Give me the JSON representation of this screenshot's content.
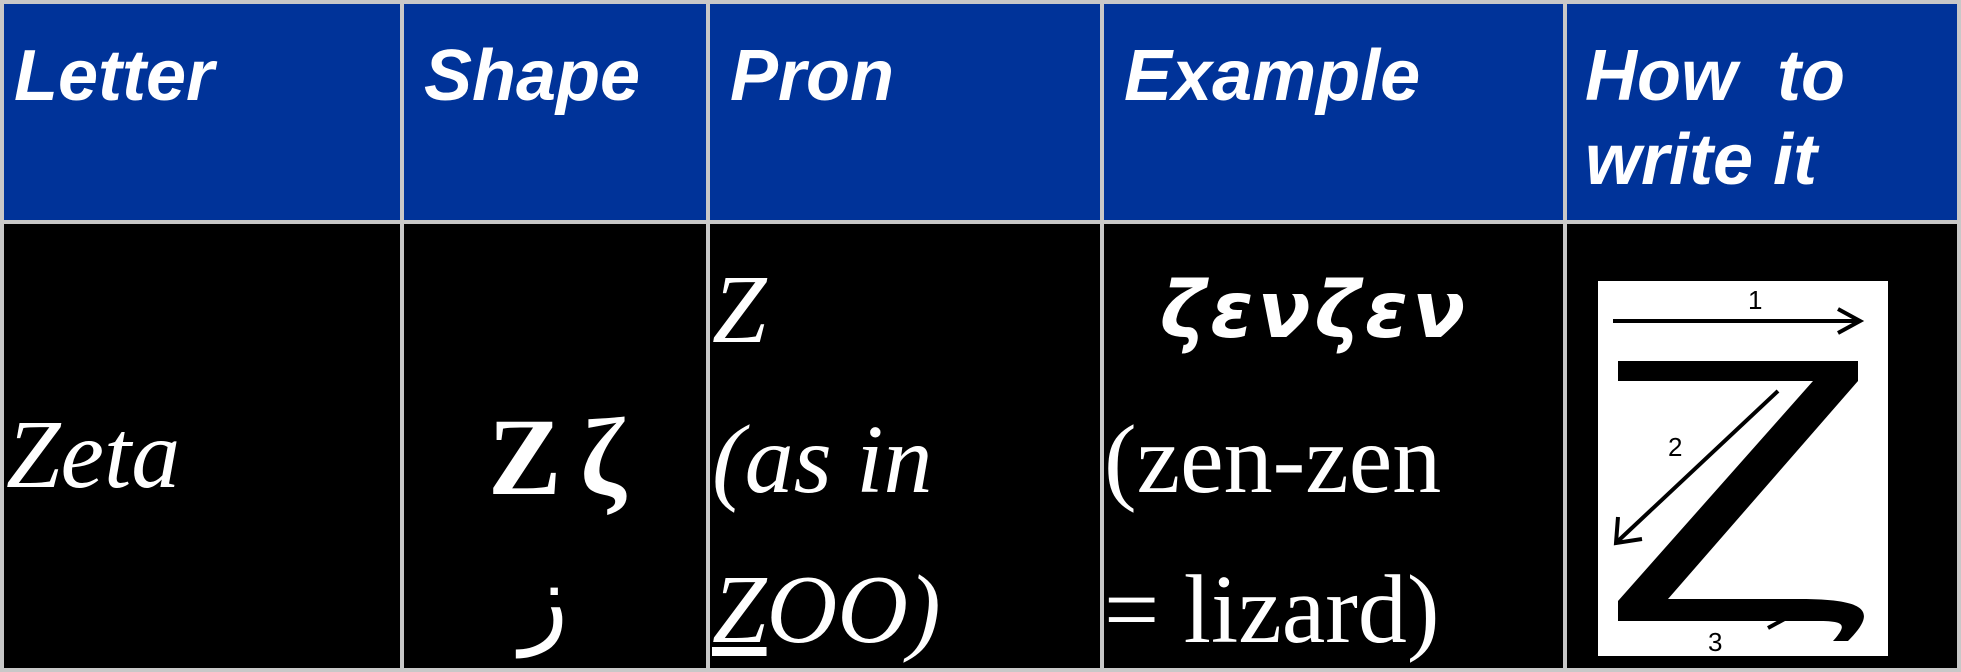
{
  "table": {
    "header": [
      "Letter",
      "Shape",
      "Pron",
      "Example",
      [
        "How  to",
        "write it"
      ]
    ],
    "rows": [
      {
        "letter": "Zeta",
        "shape": {
          "upper": "Ζ",
          "lower": "ζ",
          "arabic": "ز"
        },
        "pron": [
          "Z",
          "(as in",
          "ZOO)"
        ],
        "example": [
          "ζενζεν",
          "(zen-zen",
          "= lizard)"
        ],
        "how_to_write": {
          "strokes": [
            "1",
            "2",
            "3"
          ]
        }
      }
    ]
  }
}
